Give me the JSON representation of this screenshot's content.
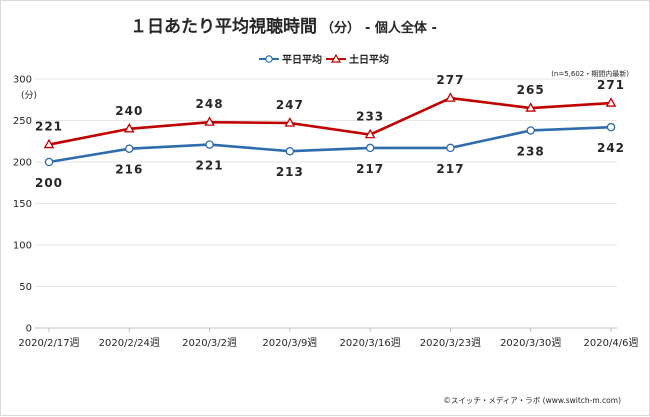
{
  "chart_data": {
    "type": "line",
    "title": "１日あたり平均視聴時間",
    "title_unit": "（分）",
    "subtitle": "- 個人全体 -",
    "y_unit_label": "(分)",
    "note": "(n=5,602・期間内最新)",
    "credit": "©スイッチ・メディア・ラボ (www.switch-m.com)",
    "categories": [
      "2020/2/17週",
      "2020/2/24週",
      "2020/3/2週",
      "2020/3/9週",
      "2020/3/16週",
      "2020/3/23週",
      "2020/3/30週",
      "2020/4/6週"
    ],
    "series": [
      {
        "name": "平日平均",
        "values": [
          200,
          216,
          221,
          213,
          217,
          217,
          238,
          242
        ],
        "color": "#2e6cad",
        "marker": "circle",
        "label_position": "below"
      },
      {
        "name": "土日平均",
        "values": [
          221,
          240,
          248,
          247,
          233,
          277,
          265,
          271
        ],
        "color": "#c00000",
        "marker": "triangle",
        "label_position": "above"
      }
    ],
    "ylim": [
      0,
      300
    ],
    "yticks": [
      0,
      50,
      100,
      150,
      200,
      250,
      300
    ],
    "grid": true,
    "legend": "top-center"
  }
}
